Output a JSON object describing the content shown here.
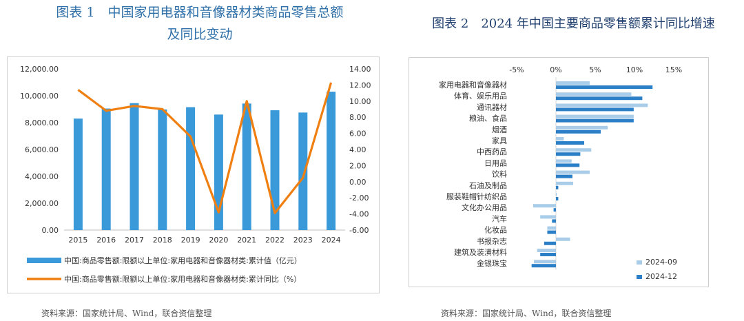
{
  "left": {
    "title_line1": "图表 1　中国家用电器和音像器材类商品零售总额",
    "title_line2": "及同比变动",
    "source": "资料来源：国家统计局、Wind，联合资信整理"
  },
  "right": {
    "title": "图表 2　2024 年中国主要商品零售额累计同比增速",
    "source": "资料来源：国家统计局、Wind，联合资信整理"
  },
  "chart_data": [
    {
      "type": "bar+line",
      "categories": [
        "2015",
        "2016",
        "2017",
        "2018",
        "2019",
        "2020",
        "2021",
        "2022",
        "2023",
        "2024"
      ],
      "series": [
        {
          "name": "中国:商品零售额:限额以上单位:家用电器和音像器材类:累计值（亿元）",
          "kind": "bar",
          "axis": "left",
          "values": [
            8300,
            9050,
            9450,
            8980,
            9150,
            8600,
            9420,
            8920,
            8750,
            10300
          ],
          "color": "#3a9ad9"
        },
        {
          "name": "中国:商品零售额:限额以上单位:家用电器和音像器材类:累计同比（%）",
          "kind": "line",
          "axis": "right",
          "values": [
            11.4,
            8.8,
            9.4,
            9.0,
            5.6,
            -3.8,
            10.0,
            -3.9,
            0.5,
            12.3
          ],
          "color": "#f07f12"
        }
      ],
      "left_axis": {
        "ylim": [
          0,
          12000
        ],
        "ticks": [
          "0.00",
          "2,000.00",
          "4,000.00",
          "6,000.00",
          "8,000.00",
          "10,000.00",
          "12,000.00"
        ]
      },
      "right_axis": {
        "ylim": [
          -6,
          14
        ],
        "ticks": [
          "-6.00",
          "-4.00",
          "-2.00",
          "0.00",
          "2.00",
          "4.00",
          "6.00",
          "8.00",
          "10.00",
          "12.00",
          "14.00"
        ]
      },
      "grid": false,
      "legend": "bottom"
    },
    {
      "type": "bar",
      "orientation": "horizontal",
      "categories": [
        "家用电器和音像器材",
        "体育、娱乐用品",
        "通讯器材",
        "粮油、食品",
        "烟酒",
        "家具",
        "中西药品",
        "日用品",
        "饮料",
        "石油及制品",
        "服装鞋帽针纺织品",
        "文化办公用品",
        "汽车",
        "化妆品",
        "书报杂志",
        "建筑及装潢材料",
        "金银珠宝"
      ],
      "series": [
        {
          "name": "2024-09",
          "color": "#a9cde8",
          "values": [
            4.3,
            9.6,
            11.7,
            9.9,
            6.6,
            1.0,
            4.5,
            2.0,
            4.3,
            2.2,
            0.1,
            -2.9,
            -2.0,
            -1.1,
            1.8,
            -2.4,
            -2.8
          ]
        },
        {
          "name": "2024-12",
          "color": "#2b7fc6",
          "values": [
            12.3,
            11.0,
            9.9,
            9.9,
            5.7,
            3.6,
            3.1,
            3.0,
            2.1,
            0.3,
            0.3,
            -0.3,
            -0.5,
            -1.1,
            -1.5,
            -2.0,
            -3.1
          ]
        }
      ],
      "xlim": [
        -5,
        15
      ],
      "ticks": [
        "-5%",
        "0%",
        "5%",
        "10%",
        "15%"
      ],
      "grid": false,
      "legend": "bottom-right"
    }
  ]
}
